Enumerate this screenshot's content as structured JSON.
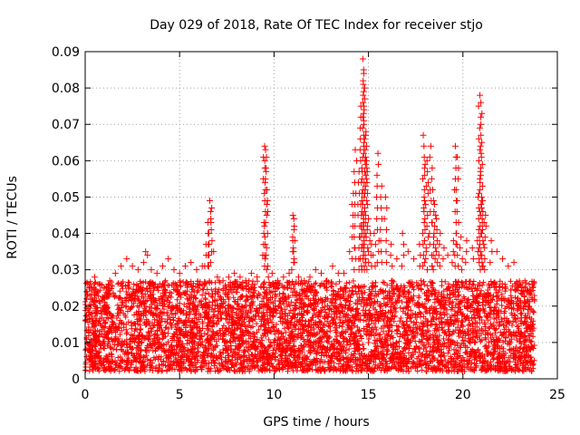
{
  "chart_data": {
    "type": "scatter",
    "title": "Day 029 of 2018, Rate Of TEC Index for receiver stjo",
    "xlabel": "GPS time / hours",
    "ylabel": "ROTI / TECUs",
    "xlim": [
      0,
      25
    ],
    "ylim": [
      0,
      0.09
    ],
    "xticks": [
      0,
      5,
      10,
      15,
      20,
      25
    ],
    "yticks": [
      0,
      0.01,
      0.02,
      0.03,
      0.04,
      0.05,
      0.06,
      0.07,
      0.08,
      0.09
    ],
    "xtick_labels": [
      "0",
      "5",
      "10",
      "15",
      "20",
      "25"
    ],
    "ytick_labels": [
      "0",
      "0.01",
      "0.02",
      "0.03",
      "0.04",
      "0.05",
      "0.06",
      "0.07",
      "0.08",
      "0.09"
    ],
    "grid": true,
    "marker": "+",
    "color": "#ff0000",
    "series": [
      {
        "name": "ROTI",
        "x": [
          0.1,
          0.3,
          0.5,
          0.8,
          1.0,
          1.3,
          1.6,
          1.9,
          2.2,
          2.5,
          2.8,
          3.1,
          3.2,
          3.3,
          3.5,
          3.8,
          4.1,
          4.4,
          4.7,
          5.0,
          5.3,
          5.6,
          5.9,
          6.2,
          6.4,
          6.5,
          6.6,
          6.7,
          6.8,
          7.0,
          7.3,
          7.6,
          7.9,
          8.2,
          8.5,
          8.8,
          9.1,
          9.4,
          9.5,
          9.55,
          9.6,
          9.7,
          9.9,
          10.2,
          10.5,
          10.8,
          11.0,
          11.05,
          11.1,
          11.3,
          11.6,
          11.9,
          12.2,
          12.5,
          12.8,
          13.1,
          13.4,
          13.7,
          14.0,
          14.2,
          14.3,
          14.5,
          14.6,
          14.7,
          14.75,
          14.8,
          14.85,
          14.9,
          15.0,
          15.1,
          15.3,
          15.5,
          15.7,
          15.9,
          16.2,
          16.5,
          16.8,
          17.1,
          17.4,
          17.7,
          17.9,
          18.0,
          18.1,
          18.3,
          18.4,
          18.5,
          18.6,
          18.8,
          19.0,
          19.2,
          19.5,
          19.6,
          19.7,
          19.9,
          20.2,
          20.5,
          20.8,
          20.9,
          20.95,
          21.0,
          21.05,
          21.2,
          21.5,
          21.8,
          22.1,
          22.4,
          22.7,
          23.0,
          23.3,
          23.6
        ],
        "y": [
          0.024,
          0.026,
          0.028,
          0.026,
          0.025,
          0.027,
          0.029,
          0.031,
          0.033,
          0.031,
          0.03,
          0.032,
          0.035,
          0.034,
          0.03,
          0.029,
          0.031,
          0.033,
          0.03,
          0.029,
          0.031,
          0.032,
          0.03,
          0.031,
          0.037,
          0.043,
          0.049,
          0.047,
          0.035,
          0.028,
          0.027,
          0.028,
          0.029,
          0.028,
          0.027,
          0.029,
          0.028,
          0.034,
          0.064,
          0.063,
          0.061,
          0.028,
          0.029,
          0.027,
          0.028,
          0.029,
          0.045,
          0.044,
          0.038,
          0.028,
          0.027,
          0.028,
          0.03,
          0.029,
          0.027,
          0.031,
          0.029,
          0.029,
          0.035,
          0.051,
          0.063,
          0.057,
          0.075,
          0.088,
          0.084,
          0.08,
          0.067,
          0.06,
          0.044,
          0.04,
          0.04,
          0.062,
          0.053,
          0.05,
          0.037,
          0.033,
          0.04,
          0.035,
          0.033,
          0.037,
          0.067,
          0.059,
          0.06,
          0.064,
          0.052,
          0.048,
          0.044,
          0.04,
          0.036,
          0.034,
          0.038,
          0.064,
          0.061,
          0.039,
          0.038,
          0.036,
          0.05,
          0.078,
          0.076,
          0.065,
          0.049,
          0.045,
          0.038,
          0.035,
          0.033,
          0.031,
          0.032,
          0.026,
          0.025,
          0.024
        ]
      }
    ],
    "band": {
      "description": "dense background scatter of ROTI values spanning roughly 0.002 to 0.027 TECUs across 0 to 23.8 hours",
      "x_range": [
        0,
        23.8
      ],
      "y_range": [
        0.002,
        0.027
      ]
    }
  }
}
